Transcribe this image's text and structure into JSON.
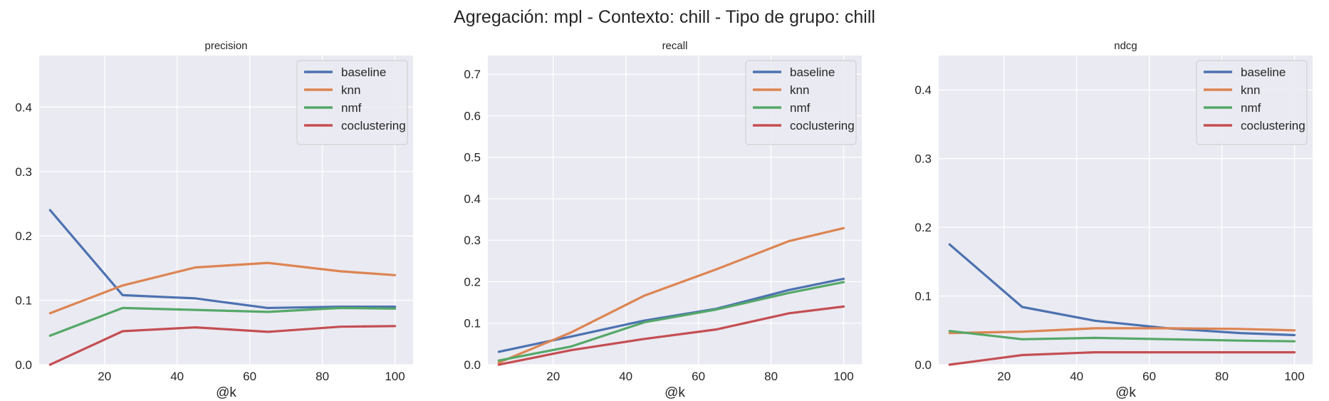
{
  "figure": {
    "title": "Agregación: mpl - Contexto: chill - Tipo de grupo: chill"
  },
  "style": {
    "background": "#EAEAF2",
    "grid": "#FFFFFF",
    "series_colors": {
      "baseline": "#4C72B0",
      "knn": "#DD8452",
      "nmf": "#55A868",
      "coclustering": "#C44E52"
    }
  },
  "chart_data": [
    {
      "type": "line",
      "title": "precision",
      "xlabel": "@k",
      "ylabel": "",
      "x": [
        5,
        25,
        45,
        65,
        85,
        100
      ],
      "xlim": [
        2,
        105
      ],
      "ylim": [
        0,
        0.48
      ],
      "xticks": [
        "20",
        "40",
        "60",
        "80",
        "100"
      ],
      "yticks": [
        "0.0",
        "0.1",
        "0.2",
        "0.3",
        "0.4"
      ],
      "grid": true,
      "legend_position": "top-right",
      "series": [
        {
          "name": "baseline",
          "values": [
            0.24,
            0.108,
            0.103,
            0.088,
            0.09,
            0.09
          ]
        },
        {
          "name": "knn",
          "values": [
            0.08,
            0.123,
            0.151,
            0.158,
            0.145,
            0.139
          ]
        },
        {
          "name": "nmf",
          "values": [
            0.045,
            0.088,
            0.085,
            0.082,
            0.088,
            0.087
          ]
        },
        {
          "name": "coclustering",
          "values": [
            0.0,
            0.052,
            0.058,
            0.051,
            0.059,
            0.06
          ]
        }
      ]
    },
    {
      "type": "line",
      "title": "recall",
      "xlabel": "@k",
      "ylabel": "",
      "x": [
        5,
        25,
        45,
        65,
        85,
        100
      ],
      "xlim": [
        2,
        105
      ],
      "ylim": [
        0,
        0.745
      ],
      "xticks": [
        "20",
        "40",
        "60",
        "80",
        "100"
      ],
      "yticks": [
        "0.0",
        "0.1",
        "0.2",
        "0.3",
        "0.4",
        "0.5",
        "0.6",
        "0.7"
      ],
      "grid": true,
      "legend_position": "top-right",
      "series": [
        {
          "name": "baseline",
          "values": [
            0.031,
            0.068,
            0.106,
            0.135,
            0.18,
            0.207
          ]
        },
        {
          "name": "knn",
          "values": [
            0.005,
            0.078,
            0.166,
            0.23,
            0.298,
            0.329
          ]
        },
        {
          "name": "nmf",
          "values": [
            0.01,
            0.044,
            0.102,
            0.133,
            0.173,
            0.199
          ]
        },
        {
          "name": "coclustering",
          "values": [
            0.0,
            0.035,
            0.062,
            0.085,
            0.124,
            0.14
          ]
        }
      ]
    },
    {
      "type": "line",
      "title": "ndcg",
      "xlabel": "@k",
      "ylabel": "",
      "x": [
        5,
        25,
        45,
        65,
        85,
        100
      ],
      "xlim": [
        2,
        105
      ],
      "ylim": [
        0,
        0.45
      ],
      "xticks": [
        "20",
        "40",
        "60",
        "80",
        "100"
      ],
      "yticks": [
        "0.0",
        "0.1",
        "0.2",
        "0.3",
        "0.4"
      ],
      "grid": true,
      "legend_position": "top-right",
      "series": [
        {
          "name": "baseline",
          "values": [
            0.175,
            0.084,
            0.064,
            0.053,
            0.046,
            0.043
          ]
        },
        {
          "name": "knn",
          "values": [
            0.046,
            0.048,
            0.053,
            0.053,
            0.052,
            0.05
          ]
        },
        {
          "name": "nmf",
          "values": [
            0.049,
            0.037,
            0.039,
            0.037,
            0.035,
            0.034
          ]
        },
        {
          "name": "coclustering",
          "values": [
            0.0,
            0.014,
            0.018,
            0.018,
            0.018,
            0.018
          ]
        }
      ]
    }
  ]
}
